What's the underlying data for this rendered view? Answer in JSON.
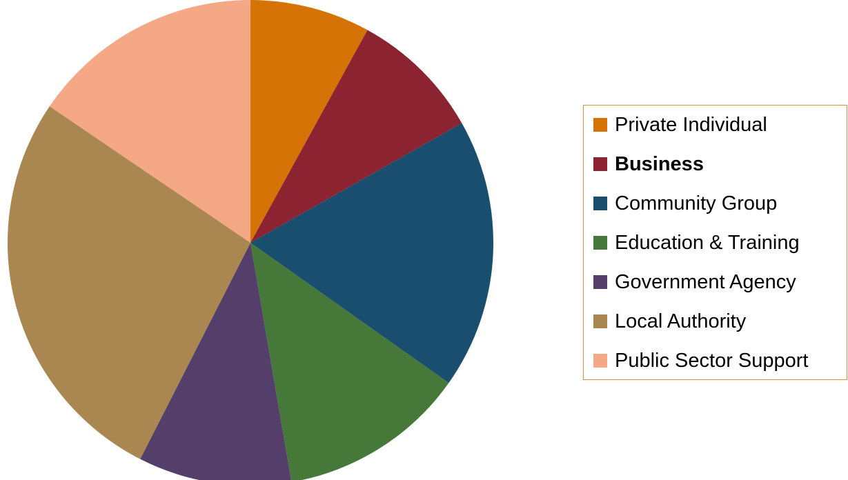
{
  "chart_data": {
    "type": "pie",
    "title": "",
    "start_angle_deg": 0,
    "direction": "clockwise",
    "legend_position": "right",
    "slices": [
      {
        "label": "Private Individual",
        "value": 8.0,
        "color": "#d67306",
        "bold": false
      },
      {
        "label": "Business",
        "value": 8.8,
        "color": "#8b2331",
        "bold": true
      },
      {
        "label": "Community Group",
        "value": 18.0,
        "color": "#1a4e6e",
        "bold": false
      },
      {
        "label": "Education & Training",
        "value": 12.5,
        "color": "#46783a",
        "bold": false
      },
      {
        "label": "Government Agency",
        "value": 10.2,
        "color": "#543f6a",
        "bold": false
      },
      {
        "label": "Local Authority",
        "value": 27.0,
        "color": "#aa8751",
        "bold": false
      },
      {
        "label": "Public Sector Support",
        "value": 15.5,
        "color": "#f4a886",
        "bold": false
      }
    ]
  },
  "legend": {
    "border_color": "#e88b3a"
  }
}
